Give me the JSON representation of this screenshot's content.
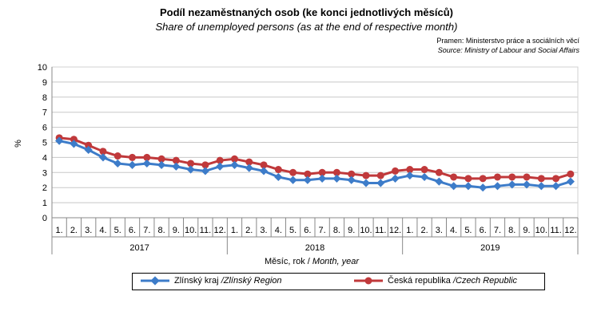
{
  "header": {
    "title": "Podíl nezaměstnaných osob (ke konci jednotlivých měsíců)",
    "subtitle": "Share of unemployed persons (as at the end of respective month)",
    "source_cz": "Pramen: Ministerstvo práce a sociálních věcí",
    "source_en": "Source: Ministry of Labour and Social Affairs"
  },
  "legend": {
    "s1_cz": "Zlínský kraj",
    "s1_en": "/Zlínský Region",
    "s2_cz": "Česká republika",
    "s2_en": "/Czech Republic"
  },
  "colors": {
    "zlin": "#3D7CC9",
    "cr": "#C0393B",
    "grid": "#c8c8c8"
  },
  "chart_data": {
    "type": "line",
    "title": "Podíl nezaměstnaných osob (ke konci jednotlivých měsíců)",
    "subtitle": "Share of unemployed persons (as at the end of respective month)",
    "ylabel": "%",
    "xlabel_cz": "Měsíc, rok /",
    "xlabel_en": "Month, year",
    "ylim": [
      0,
      10
    ],
    "yticks": [
      "0",
      "1",
      "2",
      "3",
      "4",
      "5",
      "6",
      "7",
      "8",
      "9",
      "10"
    ],
    "categories": [
      "1.",
      "2.",
      "3.",
      "4.",
      "5.",
      "6.",
      "7.",
      "8.",
      "9.",
      "10.",
      "11.",
      "12.",
      "1.",
      "2.",
      "3.",
      "4.",
      "5.",
      "6.",
      "7.",
      "8.",
      "9.",
      "10.",
      "11.",
      "12.",
      "1.",
      "2.",
      "3.",
      "4.",
      "5.",
      "6.",
      "7.",
      "8.",
      "9.",
      "10.",
      "11.",
      "12."
    ],
    "years": [
      "2017",
      "2018",
      "2019"
    ],
    "series": [
      {
        "name": "Zlínský kraj /Zlínský Region",
        "values": [
          5.1,
          4.9,
          4.5,
          4.0,
          3.6,
          3.5,
          3.6,
          3.5,
          3.4,
          3.2,
          3.1,
          3.4,
          3.5,
          3.3,
          3.1,
          2.7,
          2.5,
          2.5,
          2.6,
          2.6,
          2.5,
          2.3,
          2.3,
          2.6,
          2.8,
          2.7,
          2.4,
          2.1,
          2.1,
          2.0,
          2.1,
          2.2,
          2.2,
          2.1,
          2.1,
          2.4
        ]
      },
      {
        "name": "Česká republika /Czech Republic",
        "values": [
          5.3,
          5.2,
          4.8,
          4.4,
          4.1,
          4.0,
          4.0,
          3.9,
          3.8,
          3.6,
          3.5,
          3.8,
          3.9,
          3.7,
          3.5,
          3.2,
          3.0,
          2.9,
          3.0,
          3.0,
          2.9,
          2.8,
          2.8,
          3.1,
          3.2,
          3.2,
          3.0,
          2.7,
          2.6,
          2.6,
          2.7,
          2.7,
          2.7,
          2.6,
          2.6,
          2.9
        ]
      }
    ]
  }
}
